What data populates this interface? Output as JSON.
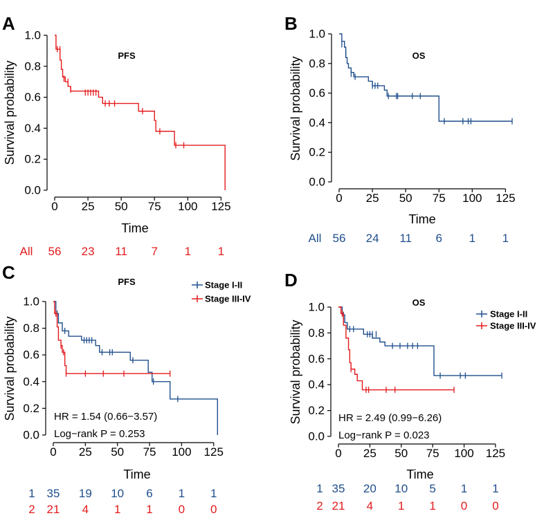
{
  "colors": {
    "red": "#e41a1c",
    "blue": "#1f4e8c",
    "axis": "#000000"
  },
  "chart_data": [
    {
      "panel": "A",
      "type": "line",
      "subtype": "kaplan-meier",
      "title": "PFS",
      "xlabel": "Time",
      "ylabel": "Survival probability",
      "xlim": [
        0,
        130
      ],
      "ylim": [
        0,
        1
      ],
      "xticks": [
        "0",
        "25",
        "50",
        "75",
        "100",
        "125"
      ],
      "yticks": [
        "0.0",
        "0.2",
        "0.4",
        "0.6",
        "0.8",
        "1.0"
      ],
      "series": [
        {
          "name": "All",
          "color": "#e41a1c",
          "steps": [
            [
              0,
              1.0
            ],
            [
              1,
              0.91
            ],
            [
              4,
              0.84
            ],
            [
              5,
              0.78
            ],
            [
              6,
              0.73
            ],
            [
              8,
              0.7
            ],
            [
              10,
              0.67
            ],
            [
              12,
              0.64
            ],
            [
              33,
              0.6
            ],
            [
              36,
              0.56
            ],
            [
              63,
              0.51
            ],
            [
              75,
              0.45
            ],
            [
              76,
              0.38
            ],
            [
              90,
              0.29
            ],
            [
              128,
              0.29
            ],
            [
              128,
              0.0
            ]
          ],
          "censor": [
            [
              2,
              0.91
            ],
            [
              4,
              0.91
            ],
            [
              7,
              0.72
            ],
            [
              10,
              0.7
            ],
            [
              12,
              0.65
            ],
            [
              23,
              0.63
            ],
            [
              25,
              0.63
            ],
            [
              27,
              0.63
            ],
            [
              29,
              0.63
            ],
            [
              31,
              0.63
            ],
            [
              38,
              0.56
            ],
            [
              41,
              0.56
            ],
            [
              45,
              0.56
            ],
            [
              66,
              0.51
            ],
            [
              79,
              0.38
            ],
            [
              91,
              0.29
            ],
            [
              97,
              0.29
            ]
          ]
        }
      ],
      "risk_table": [
        {
          "label": "All",
          "counts": [
            "56",
            "23",
            "11",
            "7",
            "1",
            "1"
          ]
        }
      ]
    },
    {
      "panel": "B",
      "type": "line",
      "subtype": "kaplan-meier",
      "title": "OS",
      "xlabel": "Time",
      "ylabel": "Survival probability",
      "xlim": [
        0,
        130
      ],
      "ylim": [
        0,
        1
      ],
      "xticks": [
        "0",
        "25",
        "50",
        "75",
        "100",
        "125"
      ],
      "yticks": [
        "0.0",
        "0.2",
        "0.4",
        "0.6",
        "0.8",
        "1.0"
      ],
      "series": [
        {
          "name": "All",
          "color": "#1f4e8c",
          "steps": [
            [
              0,
              1.0
            ],
            [
              2,
              0.95
            ],
            [
              4,
              0.91
            ],
            [
              5,
              0.84
            ],
            [
              6,
              0.8
            ],
            [
              7,
              0.77
            ],
            [
              9,
              0.74
            ],
            [
              11,
              0.71
            ],
            [
              22,
              0.68
            ],
            [
              25,
              0.65
            ],
            [
              34,
              0.62
            ],
            [
              36,
              0.58
            ],
            [
              75,
              0.58
            ],
            [
              75,
              0.41
            ],
            [
              130,
              0.41
            ]
          ],
          "censor": [
            [
              2,
              0.93
            ],
            [
              5,
              0.87
            ],
            [
              9,
              0.73
            ],
            [
              12,
              0.71
            ],
            [
              25,
              0.65
            ],
            [
              27,
              0.65
            ],
            [
              29,
              0.65
            ],
            [
              37,
              0.58
            ],
            [
              43,
              0.58
            ],
            [
              44,
              0.58
            ],
            [
              55,
              0.58
            ],
            [
              61,
              0.58
            ],
            [
              79,
              0.41
            ],
            [
              93,
              0.41
            ],
            [
              97,
              0.41
            ],
            [
              99,
              0.41
            ],
            [
              130,
              0.41
            ]
          ]
        }
      ],
      "risk_table": [
        {
          "label": "All",
          "counts": [
            "56",
            "24",
            "11",
            "6",
            "1",
            "1"
          ]
        }
      ]
    },
    {
      "panel": "C",
      "type": "line",
      "subtype": "kaplan-meier",
      "title": "PFS",
      "xlabel": "Time",
      "ylabel": "Survival probability",
      "xlim": [
        0,
        130
      ],
      "ylim": [
        0,
        1
      ],
      "xticks": [
        "0",
        "25",
        "50",
        "75",
        "100",
        "125"
      ],
      "yticks": [
        "0.0",
        "0.2",
        "0.4",
        "0.6",
        "0.8",
        "1.0"
      ],
      "legend": [
        "Stage I-II",
        "Stage III-IV"
      ],
      "annotations": [
        "HR = 1.54 (0.66−3.57)",
        "Log−rank P = 0.253"
      ],
      "series": [
        {
          "name": "Stage I-II",
          "color": "#1f4e8c",
          "steps": [
            [
              0,
              1.0
            ],
            [
              2,
              0.91
            ],
            [
              4,
              0.84
            ],
            [
              7,
              0.78
            ],
            [
              12,
              0.74
            ],
            [
              22,
              0.71
            ],
            [
              33,
              0.67
            ],
            [
              36,
              0.62
            ],
            [
              60,
              0.56
            ],
            [
              74,
              0.47
            ],
            [
              77,
              0.4
            ],
            [
              91,
              0.27
            ],
            [
              128,
              0.27
            ],
            [
              128,
              0.0
            ]
          ],
          "censor": [
            [
              3,
              0.91
            ],
            [
              9,
              0.78
            ],
            [
              24,
              0.71
            ],
            [
              26,
              0.71
            ],
            [
              28,
              0.71
            ],
            [
              30,
              0.71
            ],
            [
              38,
              0.62
            ],
            [
              44,
              0.62
            ],
            [
              46,
              0.62
            ],
            [
              62,
              0.56
            ],
            [
              78,
              0.4
            ],
            [
              97,
              0.27
            ]
          ]
        },
        {
          "name": "Stage III-IV",
          "color": "#e41a1c",
          "steps": [
            [
              0,
              1.0
            ],
            [
              1,
              0.91
            ],
            [
              3,
              0.81
            ],
            [
              4,
              0.71
            ],
            [
              6,
              0.67
            ],
            [
              7,
              0.62
            ],
            [
              9,
              0.52
            ],
            [
              10,
              0.46
            ],
            [
              91,
              0.46
            ]
          ],
          "censor": [
            [
              2,
              0.91
            ],
            [
              6,
              0.67
            ],
            [
              8,
              0.62
            ],
            [
              10,
              0.46
            ],
            [
              25,
              0.46
            ],
            [
              39,
              0.46
            ],
            [
              55,
              0.46
            ],
            [
              91,
              0.46
            ]
          ]
        }
      ],
      "risk_table": [
        {
          "label": "1",
          "counts": [
            "35",
            "19",
            "10",
            "6",
            "1",
            "1"
          ]
        },
        {
          "label": "2",
          "counts": [
            "21",
            "4",
            "1",
            "1",
            "0",
            "0"
          ]
        }
      ]
    },
    {
      "panel": "D",
      "type": "line",
      "subtype": "kaplan-meier",
      "title": "OS",
      "xlabel": "Time",
      "ylabel": "Survival probability",
      "xlim": [
        0,
        130
      ],
      "ylim": [
        0,
        1
      ],
      "xticks": [
        "0",
        "25",
        "50",
        "75",
        "100",
        "125"
      ],
      "yticks": [
        "0.0",
        "0.2",
        "0.4",
        "0.6",
        "0.8",
        "1.0"
      ],
      "legend": [
        "Stage I-II",
        "Stage III-IV"
      ],
      "annotations": [
        "HR = 2.49 (0.99−6.26)",
        "Log−rank P = 0.023"
      ],
      "series": [
        {
          "name": "Stage I-II",
          "color": "#1f4e8c",
          "steps": [
            [
              0,
              1.0
            ],
            [
              3,
              0.94
            ],
            [
              5,
              0.88
            ],
            [
              7,
              0.83
            ],
            [
              20,
              0.79
            ],
            [
              27,
              0.76
            ],
            [
              33,
              0.73
            ],
            [
              37,
              0.7
            ],
            [
              74,
              0.7
            ],
            [
              76,
              0.47
            ],
            [
              130,
              0.47
            ]
          ],
          "censor": [
            [
              4,
              0.94
            ],
            [
              9,
              0.83
            ],
            [
              12,
              0.83
            ],
            [
              23,
              0.79
            ],
            [
              25,
              0.79
            ],
            [
              27,
              0.79
            ],
            [
              30,
              0.79
            ],
            [
              43,
              0.7
            ],
            [
              49,
              0.7
            ],
            [
              55,
              0.7
            ],
            [
              59,
              0.7
            ],
            [
              63,
              0.7
            ],
            [
              81,
              0.47
            ],
            [
              97,
              0.47
            ],
            [
              101,
              0.47
            ],
            [
              130,
              0.47
            ]
          ]
        },
        {
          "name": "Stage III-IV",
          "color": "#e41a1c",
          "steps": [
            [
              0,
              1.0
            ],
            [
              2,
              0.95
            ],
            [
              4,
              0.86
            ],
            [
              6,
              0.76
            ],
            [
              8,
              0.67
            ],
            [
              9,
              0.57
            ],
            [
              10,
              0.52
            ],
            [
              13,
              0.48
            ],
            [
              15,
              0.43
            ],
            [
              19,
              0.36
            ],
            [
              92,
              0.36
            ]
          ],
          "censor": [
            [
              3,
              0.95
            ],
            [
              10,
              0.52
            ],
            [
              22,
              0.36
            ],
            [
              24,
              0.36
            ],
            [
              38,
              0.36
            ],
            [
              45,
              0.36
            ],
            [
              92,
              0.36
            ]
          ]
        }
      ],
      "risk_table": [
        {
          "label": "1",
          "counts": [
            "35",
            "20",
            "10",
            "5",
            "1",
            "1"
          ]
        },
        {
          "label": "2",
          "counts": [
            "21",
            "4",
            "1",
            "1",
            "0",
            "0"
          ]
        }
      ]
    }
  ]
}
